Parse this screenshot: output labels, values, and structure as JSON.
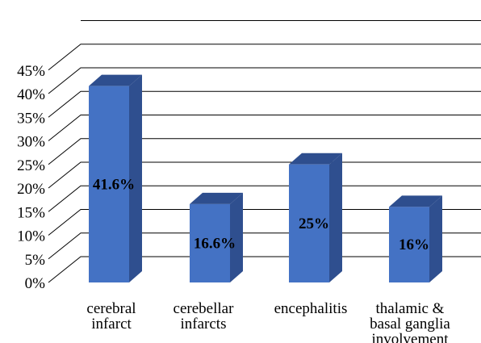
{
  "chart_data": {
    "type": "bar",
    "style": "3d-column",
    "categories": [
      [
        "cerebral",
        "infarct"
      ],
      [
        "cerebellar",
        "infarcts"
      ],
      [
        "encephalitis"
      ],
      [
        "thalamic &",
        "basal ganglia",
        "involvement"
      ]
    ],
    "values": [
      41.6,
      16.6,
      25,
      16
    ],
    "data_labels": [
      "41.6%",
      "16.6%",
      "25%",
      "16%"
    ],
    "y_ticks": [
      "0%",
      "5%",
      "10%",
      "15%",
      "20%",
      "25%",
      "30%",
      "35%",
      "40%",
      "45%"
    ],
    "ylim": [
      0,
      50
    ],
    "title": "",
    "xlabel": "",
    "ylabel": "",
    "grid": true,
    "legend": "none",
    "colors": {
      "bar_front": "#4472C4",
      "bar_side": "#2F4F8F",
      "bar_top": "#2E4E8E",
      "grid": "#000000",
      "text": "#000000"
    }
  }
}
